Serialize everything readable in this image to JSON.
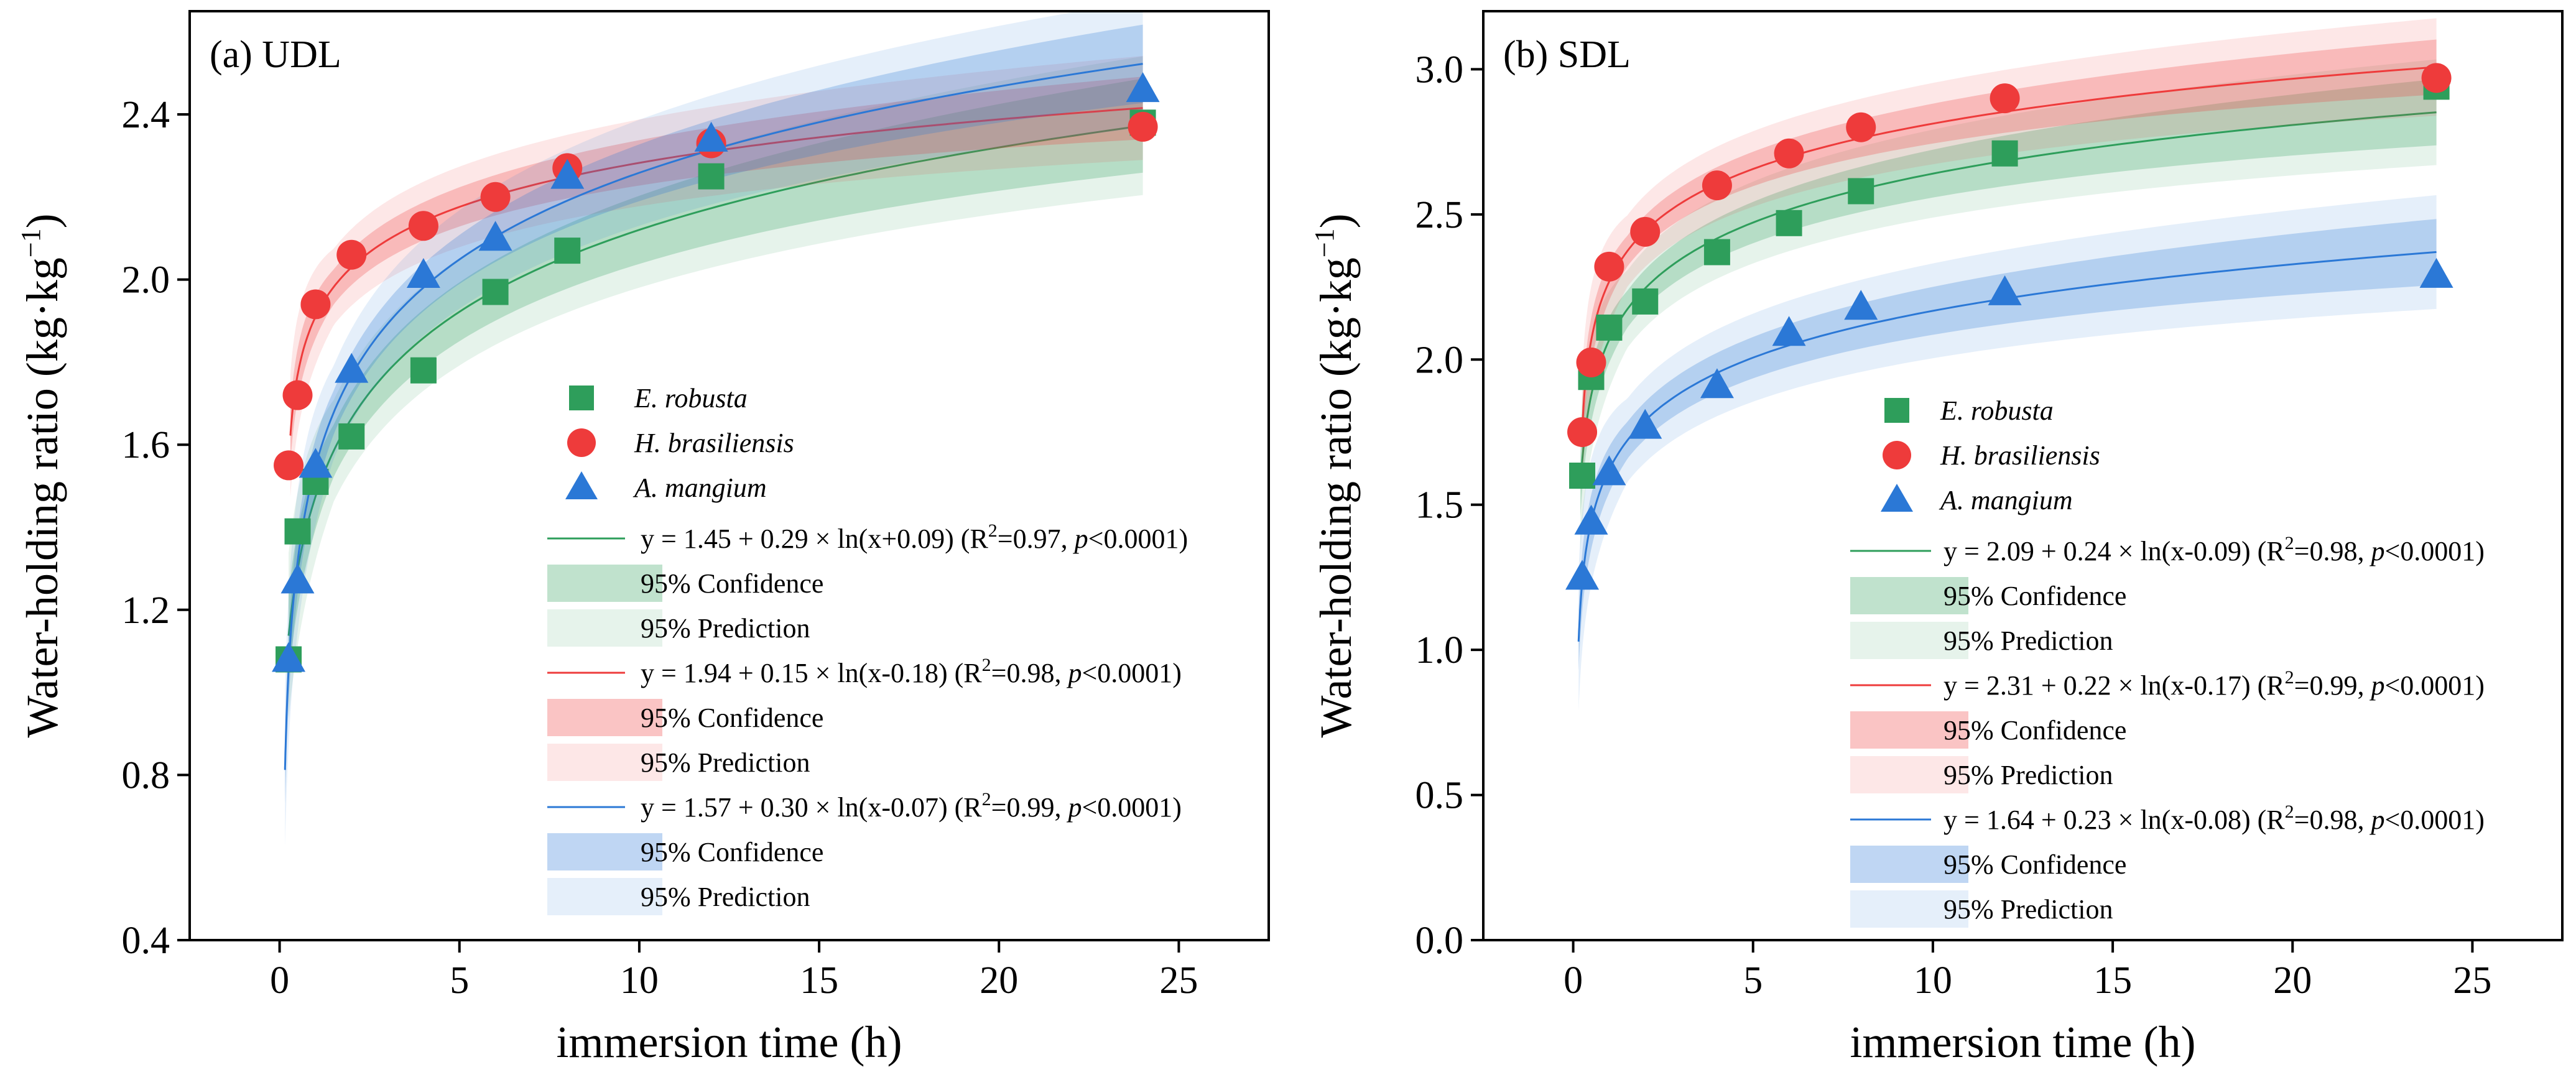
{
  "chart_data": [
    {
      "type": "scatter",
      "panel_label": "(a) UDL",
      "xlabel": "immersion time (h)",
      "ylabel": "Water-holding ratio (kg·kg",
      "ylabel_sup": "−1",
      "ylabel_close": ")",
      "xlim": [
        -2.5,
        27.5
      ],
      "ylim": [
        0.4,
        2.65
      ],
      "xticks": [
        0,
        5,
        10,
        15,
        20,
        25
      ],
      "yticks": [
        0.4,
        0.8,
        1.2,
        1.6,
        2.0,
        2.4
      ],
      "ytick_labels": [
        "0.4",
        "0.8",
        "1.2",
        "1.6",
        "2.0",
        "2.4"
      ],
      "x": [
        0.25,
        0.5,
        1,
        2,
        4,
        6,
        8,
        12,
        24
      ],
      "series": [
        {
          "name": "E. robusta",
          "marker": "square",
          "color": "#2e9e5b",
          "values": [
            1.08,
            1.39,
            1.51,
            1.62,
            1.78,
            1.97,
            2.07,
            2.25,
            2.38
          ],
          "fit": {
            "a": 1.45,
            "b": 0.29,
            "c": 0.09,
            "x0": 0.25,
            "x1": 24
          },
          "equation": "y = 1.45 + 0.29 × ln(x+0.09) (R",
          "conf_band_half_width": 0.06,
          "pred_band_half_width": 0.12
        },
        {
          "name": "H. brasiliensis",
          "marker": "circle",
          "color": "#ee3b3b",
          "values": [
            1.55,
            1.72,
            1.94,
            2.06,
            2.13,
            2.2,
            2.27,
            2.33,
            2.37
          ],
          "fit": {
            "a": 1.94,
            "b": 0.15,
            "c": -0.18,
            "x0": 0.3,
            "x1": 24
          },
          "equation": "y = 1.94 + 0.15 × ln(x-0.18) (R",
          "conf_band_half_width": 0.04,
          "pred_band_half_width": 0.09
        },
        {
          "name": "A. mangium",
          "marker": "triangle",
          "color": "#2b78d6",
          "values": [
            1.08,
            1.27,
            1.55,
            1.78,
            2.01,
            2.1,
            2.25,
            2.34,
            2.46
          ],
          "fit": {
            "a": 1.57,
            "b": 0.3,
            "c": -0.07,
            "x0": 0.15,
            "x1": 24
          },
          "equation": "y = 1.57 + 0.30 × ln(x-0.07) (R",
          "conf_band_half_width": 0.05,
          "pred_band_half_width": 0.11
        }
      ]
    },
    {
      "type": "scatter",
      "panel_label": "(b) SDL",
      "xlabel": "immersion time (h)",
      "ylabel": "Water-holding ratio (kg·kg",
      "ylabel_sup": "−1",
      "ylabel_close": ")",
      "xlim": [
        -2.5,
        27.5
      ],
      "ylim": [
        0.0,
        3.2
      ],
      "xticks": [
        0,
        5,
        10,
        15,
        20,
        25
      ],
      "yticks": [
        0.0,
        0.5,
        1.0,
        1.5,
        2.0,
        2.5,
        3.0
      ],
      "ytick_labels": [
        "0.0",
        "0.5",
        "1.0",
        "1.5",
        "2.0",
        "2.5",
        "3.0"
      ],
      "x": [
        0.25,
        0.5,
        1,
        2,
        4,
        6,
        8,
        12,
        24
      ],
      "series": [
        {
          "name": "E. robusta",
          "marker": "square",
          "color": "#2e9e5b",
          "values": [
            1.6,
            1.94,
            2.11,
            2.2,
            2.37,
            2.47,
            2.58,
            2.71,
            2.94
          ],
          "fit": {
            "a": 2.09,
            "b": 0.24,
            "c": -0.09,
            "x0": 0.2,
            "x1": 24
          },
          "equation": "y = 2.09 + 0.24 × ln(x-0.09) (R",
          "conf_band_half_width": 0.06,
          "pred_band_half_width": 0.13
        },
        {
          "name": "H. brasiliensis",
          "marker": "circle",
          "color": "#ee3b3b",
          "values": [
            1.75,
            1.99,
            2.32,
            2.44,
            2.6,
            2.71,
            2.8,
            2.9,
            2.97
          ],
          "fit": {
            "a": 2.31,
            "b": 0.22,
            "c": -0.17,
            "x0": 0.25,
            "x1": 24
          },
          "equation": "y = 2.31 + 0.22 × ln(x-0.17) (R",
          "conf_band_half_width": 0.05,
          "pred_band_half_width": 0.12
        },
        {
          "name": "A. mangium",
          "marker": "triangle",
          "color": "#2b78d6",
          "values": [
            1.25,
            1.44,
            1.61,
            1.77,
            1.91,
            2.09,
            2.18,
            2.23,
            2.29
          ],
          "fit": {
            "a": 1.64,
            "b": 0.23,
            "c": -0.08,
            "x0": 0.15,
            "x1": 24
          },
          "equation": "y = 1.64 + 0.23 × ln(x-0.08) (R",
          "conf_band_half_width": 0.06,
          "pred_band_half_width": 0.14
        }
      ]
    }
  ],
  "legend_common": {
    "equation_r2": [
      [
        "2",
        "=0.97, ",
        "p",
        "<0.0001)"
      ],
      [
        "2",
        "=0.98, ",
        "p",
        "<0.0001)"
      ],
      [
        "2",
        "=0.99, ",
        "p",
        "<0.0001)"
      ]
    ],
    "equation_r2_b": [
      [
        "2",
        "=0.98, ",
        "p",
        "<0.0001)"
      ],
      [
        "2",
        "=0.99, ",
        "p",
        "<0.0001)"
      ],
      [
        "2",
        "=0.98, ",
        "p",
        "<0.0001)"
      ]
    ],
    "confidence_label": "95% Confidence",
    "prediction_label": "95% Prediction"
  }
}
